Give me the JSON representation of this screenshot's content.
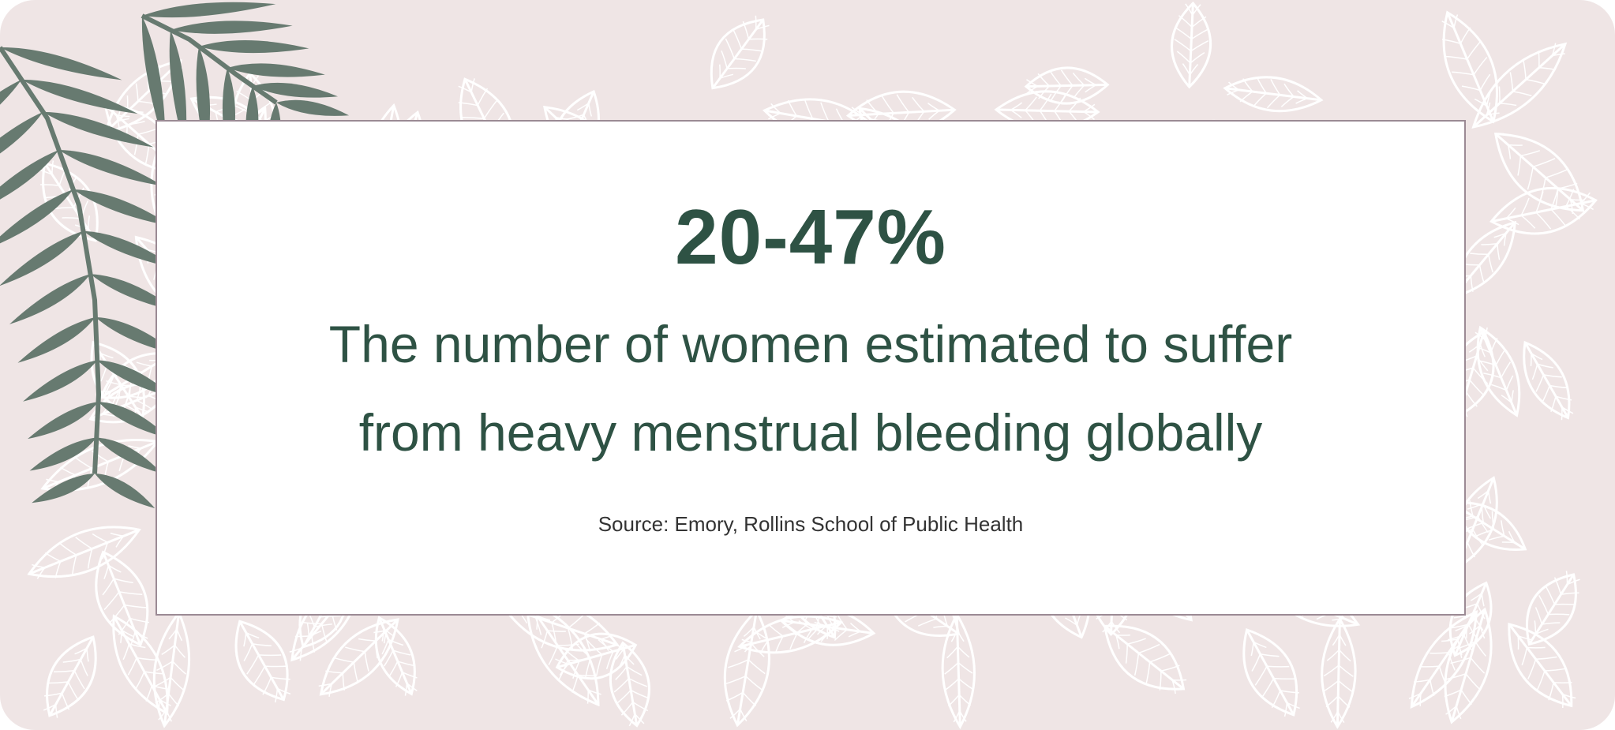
{
  "statistic": "20-47%",
  "description": {
    "line1": "The number of women estimated to suffer",
    "line2": "from heavy menstrual bleeding globally"
  },
  "source": "Source: Emory, Rollins School of Public Health",
  "colors": {
    "text_green": "#2e5244",
    "frond_green": "#677a70",
    "background_pink": "#efe5e5",
    "panel_border": "#9b8a94"
  },
  "decorations": [
    "leaf-pattern-background",
    "palm-frond-icon"
  ]
}
